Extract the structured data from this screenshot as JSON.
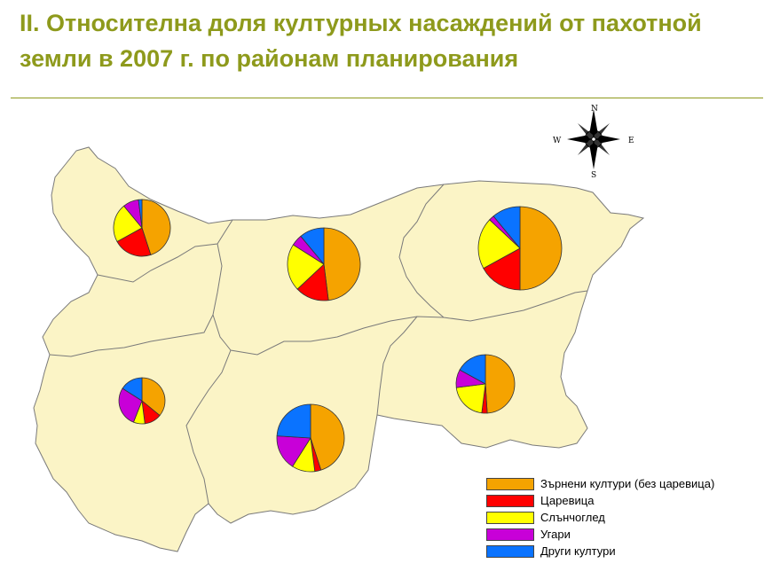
{
  "title": {
    "line1": "II. Относителна доля културных насаждений от пахотной",
    "line2": "земли в 2007 г. по районам планирования"
  },
  "colors": {
    "map_fill": "#fbf4c6",
    "map_border": "#7a7a7a",
    "title": "#8e9a1c"
  },
  "compass": {
    "icon": "compass-rose-icon",
    "n": "N",
    "s": "S",
    "e": "E",
    "w": "W"
  },
  "legend": [
    {
      "key": "grain",
      "label": "Зърнени култури (без царевица)",
      "color": "#f5a300"
    },
    {
      "key": "maize",
      "label": "Царевица",
      "color": "#ff0000"
    },
    {
      "key": "sunflower",
      "label": "Слънчоглед",
      "color": "#ffff00"
    },
    {
      "key": "fallow",
      "label": "Угари",
      "color": "#c800d8"
    },
    {
      "key": "other",
      "label": "Други култури",
      "color": "#0a73ff"
    }
  ],
  "regions": [
    {
      "id": "severozapaden",
      "shares": [
        45,
        22,
        22,
        9,
        2
      ]
    },
    {
      "id": "severen-centralen",
      "shares": [
        48,
        15,
        21,
        5,
        11
      ]
    },
    {
      "id": "severoiztochen",
      "shares": [
        50,
        17,
        20,
        2,
        11
      ]
    },
    {
      "id": "yugozapaden",
      "shares": [
        36,
        12,
        8,
        28,
        16
      ]
    },
    {
      "id": "yuzhen-centralen",
      "shares": [
        45,
        3,
        11,
        17,
        24
      ]
    },
    {
      "id": "yugoiztochen",
      "shares": [
        49,
        3,
        21,
        10,
        17
      ]
    }
  ]
}
